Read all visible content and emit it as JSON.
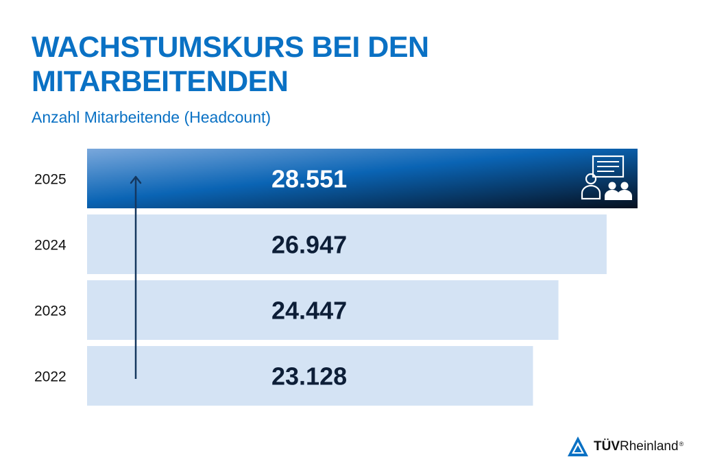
{
  "header": {
    "title_line1": "WACHSTUMSKURS BEI DEN",
    "title_line2": "MITARBEITENDEN",
    "subtitle": "Anzahl Mitarbeitende (Headcount)"
  },
  "chart_data": {
    "type": "bar",
    "orientation": "horizontal",
    "categories": [
      "2025",
      "2024",
      "2023",
      "2022"
    ],
    "values": [
      28551,
      26947,
      24447,
      23128
    ],
    "value_labels": [
      "28.551",
      "26.947",
      "24.447",
      "23.128"
    ],
    "highlighted_category": "2025",
    "title": "WACHSTUMSKURS BEI DEN MITARBEITENDEN",
    "subtitle": "Anzahl Mitarbeitende (Headcount)",
    "grid": false,
    "annotations": [
      "growth arrow pointing upward from 2022 to 2025"
    ]
  },
  "colors": {
    "brand_blue": "#0a71c4",
    "bar_light": "#d4e3f4",
    "highlight_start": "#7aa8dc",
    "highlight_mid": "#0a64b4",
    "highlight_end": "#06101f",
    "text_dark": "#0d1e37",
    "arrow": "#14375f"
  },
  "icons": {
    "highlight_icon": "presentation-people-icon",
    "logo_icon": "tuv-triangle-logo-icon"
  },
  "logo": {
    "brand_bold": "TÜV",
    "brand_rest": "Rheinland",
    "registered": "®"
  }
}
